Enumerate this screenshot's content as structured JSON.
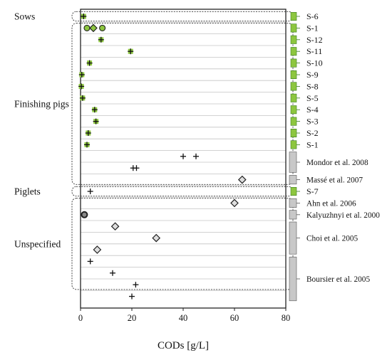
{
  "chart_data": {
    "type": "scatter",
    "title": "",
    "xlabel": "CODs [g/L]",
    "ylabel": "",
    "xlim": [
      0,
      80
    ],
    "x_ticks": [
      0,
      20,
      40,
      60,
      80
    ],
    "grid": true,
    "legend": "none",
    "colors": {
      "lab": "#8dc63f",
      "lab_edge": "#3a7d1e",
      "lit": "#c8c8c8",
      "frame": "#222222",
      "diamond_fill": "#dddddd"
    },
    "categories": [
      {
        "name": "Sows",
        "rows": [
          "S-6"
        ]
      },
      {
        "name": "Finishing pigs",
        "rows": [
          "S-1",
          "S-12",
          "S-11",
          "S-10",
          "S-9",
          "S-8",
          "S-5",
          "S-4",
          "S-3",
          "S-2",
          "S-1",
          "Mondor et al. 2008",
          "Massé et al. 2007",
          "S-7"
        ]
      },
      {
        "name": "Piglets",
        "rows": [
          "Ahn et al. 2006"
        ]
      },
      {
        "name": "Unspecified",
        "rows": [
          "Kalyuzhnyi et al. 2000",
          "Choi et al. 2005",
          "Choi et al. 2005",
          "Choi et al. 2005",
          "Boursier et al. 2005",
          "Boursier et al. 2005",
          "Boursier et al. 2005",
          "Boursier et al. 2005"
        ]
      }
    ],
    "row_labels": [
      {
        "text": "S-6",
        "rows": [
          0,
          0
        ],
        "source": "lab"
      },
      {
        "text": "S-1",
        "rows": [
          1,
          1
        ],
        "source": "lab"
      },
      {
        "text": "S-12",
        "rows": [
          2,
          2
        ],
        "source": "lab"
      },
      {
        "text": "S-11",
        "rows": [
          3,
          3
        ],
        "source": "lab"
      },
      {
        "text": "S-10",
        "rows": [
          4,
          4
        ],
        "source": "lab"
      },
      {
        "text": "S-9",
        "rows": [
          5,
          5
        ],
        "source": "lab"
      },
      {
        "text": "S-8",
        "rows": [
          6,
          6
        ],
        "source": "lab"
      },
      {
        "text": "S-5",
        "rows": [
          7,
          7
        ],
        "source": "lab"
      },
      {
        "text": "S-4",
        "rows": [
          8,
          8
        ],
        "source": "lab"
      },
      {
        "text": "S-3",
        "rows": [
          9,
          9
        ],
        "source": "lab"
      },
      {
        "text": "S-2",
        "rows": [
          10,
          10
        ],
        "source": "lab"
      },
      {
        "text": "S-1",
        "rows": [
          11,
          11
        ],
        "source": "lab"
      },
      {
        "text": "Mondor et al. 2008",
        "rows": [
          12,
          13
        ],
        "source": "lit"
      },
      {
        "text": "Massé et al. 2007",
        "rows": [
          14,
          14
        ],
        "source": "lit"
      },
      {
        "text": "S-7",
        "rows": [
          15,
          15
        ],
        "source": "lab"
      },
      {
        "text": "Ahn et al. 2006",
        "rows": [
          16,
          16
        ],
        "source": "lit"
      },
      {
        "text": "Kalyuzhnyi et al. 2000",
        "rows": [
          17,
          17
        ],
        "source": "lit"
      },
      {
        "text": "Choi et al. 2005",
        "rows": [
          18,
          20
        ],
        "source": "lit"
      },
      {
        "text": "Boursier et al. 2005",
        "rows": [
          21,
          24
        ],
        "source": "lit"
      }
    ],
    "points": [
      {
        "row": 0,
        "x": 1.2,
        "marker": "plus-green"
      },
      {
        "row": 1,
        "x": 2.5,
        "marker": "circle-green"
      },
      {
        "row": 1,
        "x": 5.0,
        "marker": "diamond-green"
      },
      {
        "row": 1,
        "x": 8.5,
        "marker": "circle-green"
      },
      {
        "row": 2,
        "x": 8.0,
        "marker": "plus-green"
      },
      {
        "row": 3,
        "x": 19.5,
        "marker": "plus-green"
      },
      {
        "row": 4,
        "x": 3.5,
        "marker": "plus-green"
      },
      {
        "row": 5,
        "x": 0.5,
        "marker": "plus-green"
      },
      {
        "row": 6,
        "x": 0.3,
        "marker": "plus-green"
      },
      {
        "row": 7,
        "x": 0.8,
        "marker": "plus-green"
      },
      {
        "row": 8,
        "x": 5.5,
        "marker": "plus-green"
      },
      {
        "row": 9,
        "x": 6.0,
        "marker": "plus-green"
      },
      {
        "row": 10,
        "x": 3.0,
        "marker": "plus-green"
      },
      {
        "row": 11,
        "x": 2.5,
        "marker": "plus-green"
      },
      {
        "row": 12,
        "x": 40.0,
        "marker": "plus"
      },
      {
        "row": 12,
        "x": 45.0,
        "marker": "plus"
      },
      {
        "row": 13,
        "x": 20.5,
        "marker": "plus"
      },
      {
        "row": 13,
        "x": 21.8,
        "marker": "plus"
      },
      {
        "row": 14,
        "x": 63.0,
        "marker": "diamond"
      },
      {
        "row": 15,
        "x": 3.8,
        "marker": "plus"
      },
      {
        "row": 16,
        "x": 60.0,
        "marker": "diamond"
      },
      {
        "row": 17,
        "x": 1.5,
        "marker": "circle"
      },
      {
        "row": 18,
        "x": 13.5,
        "marker": "diamond"
      },
      {
        "row": 19,
        "x": 29.5,
        "marker": "diamond"
      },
      {
        "row": 20,
        "x": 6.5,
        "marker": "diamond"
      },
      {
        "row": 21,
        "x": 3.8,
        "marker": "plus"
      },
      {
        "row": 22,
        "x": 12.5,
        "marker": "plus"
      },
      {
        "row": 23,
        "x": 21.5,
        "marker": "plus"
      },
      {
        "row": 24,
        "x": 20.0,
        "marker": "plus"
      }
    ]
  }
}
